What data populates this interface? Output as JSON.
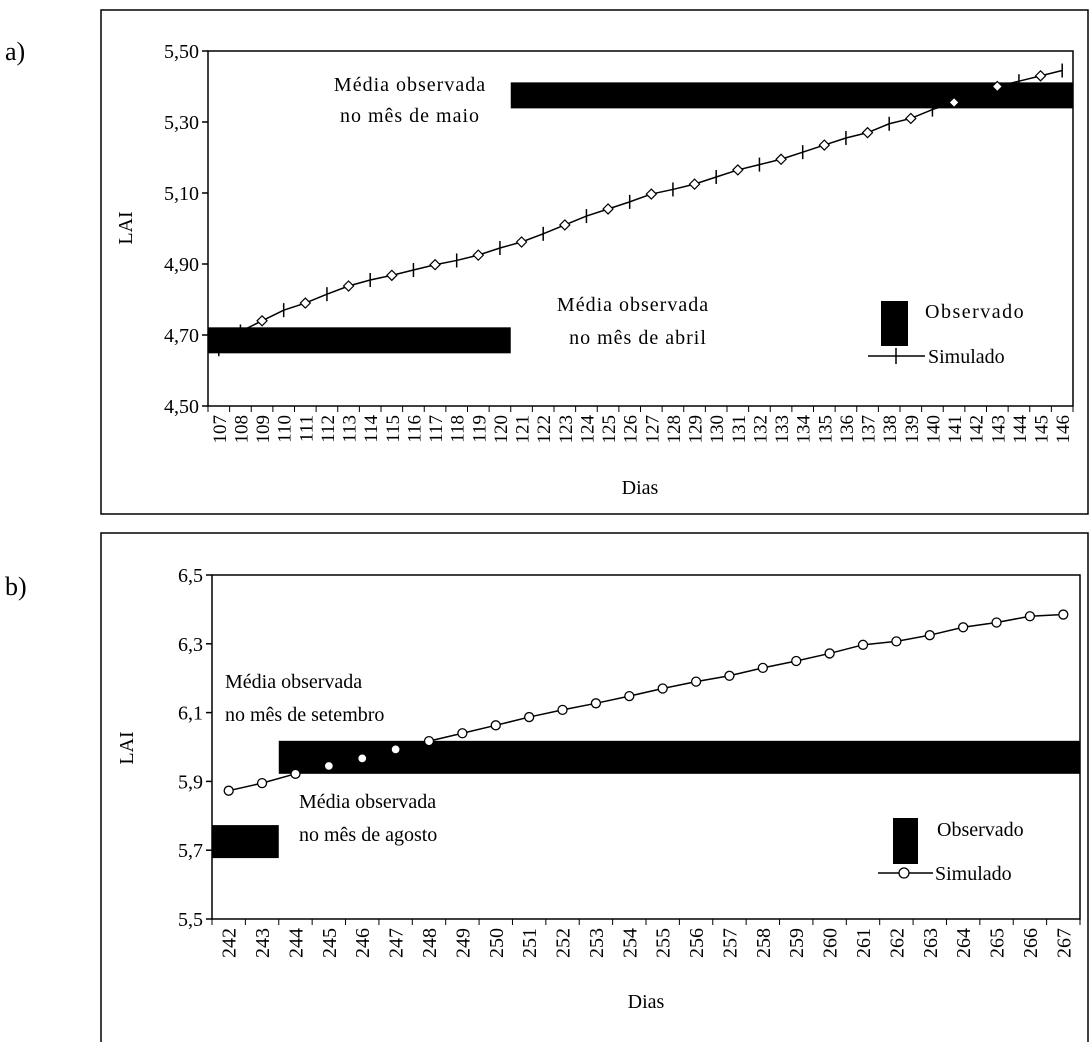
{
  "chart_data": [
    {
      "panel_label": "a)",
      "type": "line",
      "xlabel": "Dias",
      "ylabel": "LAI",
      "ylim": [
        4.5,
        5.5
      ],
      "y_ticks": [
        "4,50",
        "4,70",
        "4,90",
        "5,10",
        "5,30",
        "5,50"
      ],
      "y_tick_values": [
        4.5,
        4.7,
        4.9,
        5.1,
        5.3,
        5.5
      ],
      "categories": [
        "107",
        "108",
        "109",
        "110",
        "111",
        "112",
        "113",
        "114",
        "115",
        "116",
        "117",
        "118",
        "119",
        "120",
        "121",
        "122",
        "123",
        "124",
        "125",
        "126",
        "127",
        "128",
        "129",
        "130",
        "131",
        "132",
        "133",
        "134",
        "135",
        "136",
        "137",
        "138",
        "139",
        "140",
        "141",
        "142",
        "143",
        "144",
        "145",
        "146"
      ],
      "series": [
        {
          "name": "Simulado",
          "values": [
            4.66,
            4.71,
            4.74,
            4.77,
            4.79,
            4.815,
            4.838,
            4.855,
            4.868,
            4.883,
            4.898,
            4.91,
            4.925,
            4.945,
            4.962,
            4.985,
            5.01,
            5.035,
            5.055,
            5.075,
            5.097,
            5.11,
            5.125,
            5.145,
            5.165,
            5.18,
            5.195,
            5.215,
            5.235,
            5.255,
            5.27,
            5.295,
            5.31,
            5.335,
            5.355,
            5.38,
            5.4,
            5.415,
            5.43,
            5.445
          ],
          "marker_pattern": "alternating diamond and tick",
          "color": "#000000"
        },
        {
          "name": "Observado",
          "type": "bar",
          "items": [
            {
              "value": 4.685,
              "x_start": "107",
              "x_end": "120"
            },
            {
              "value": 5.375,
              "x_start": "121",
              "x_end": "146"
            }
          ],
          "color": "#000000"
        }
      ],
      "annotations": [
        {
          "line1": "Média observada",
          "line2": "no mês de maio"
        },
        {
          "line1": "Média observada",
          "line2": "no mês de abril"
        }
      ],
      "legend": {
        "placement": "right",
        "items": [
          "Observado",
          "Simulado"
        ]
      }
    },
    {
      "panel_label": "b)",
      "type": "line",
      "xlabel": "Dias",
      "ylabel": "LAI",
      "ylim": [
        5.5,
        6.5
      ],
      "y_ticks": [
        "5,5",
        "5,7",
        "5,9",
        "6,1",
        "6,3",
        "6,5"
      ],
      "y_tick_values": [
        5.5,
        5.7,
        5.9,
        6.1,
        6.3,
        6.5
      ],
      "categories": [
        "242",
        "243",
        "244",
        "245",
        "246",
        "247",
        "248",
        "249",
        "250",
        "251",
        "252",
        "253",
        "254",
        "255",
        "256",
        "257",
        "258",
        "259",
        "260",
        "261",
        "262",
        "263",
        "264",
        "265",
        "266",
        "267"
      ],
      "series": [
        {
          "name": "Simulado",
          "values": [
            5.873,
            5.895,
            5.922,
            5.945,
            5.967,
            5.993,
            6.017,
            6.04,
            6.063,
            6.087,
            6.108,
            6.127,
            6.148,
            6.17,
            6.19,
            6.207,
            6.23,
            6.25,
            6.272,
            6.297,
            6.307,
            6.325,
            6.348,
            6.362,
            6.38,
            6.385
          ],
          "marker": "circle",
          "color": "#000000"
        },
        {
          "name": "Observado",
          "type": "bar",
          "items": [
            {
              "value": 5.725,
              "x_start": "242",
              "x_end": "243"
            },
            {
              "value": 5.97,
              "x_start": "244",
              "x_end": "267"
            }
          ],
          "color": "#000000"
        }
      ],
      "annotations": [
        {
          "line1": "Média observada",
          "line2": "no mês de setembro"
        },
        {
          "line1": "Média observada",
          "line2": "no mês de agosto"
        }
      ],
      "legend": {
        "placement": "right",
        "items": [
          "Observado",
          "Simulado"
        ]
      }
    }
  ]
}
